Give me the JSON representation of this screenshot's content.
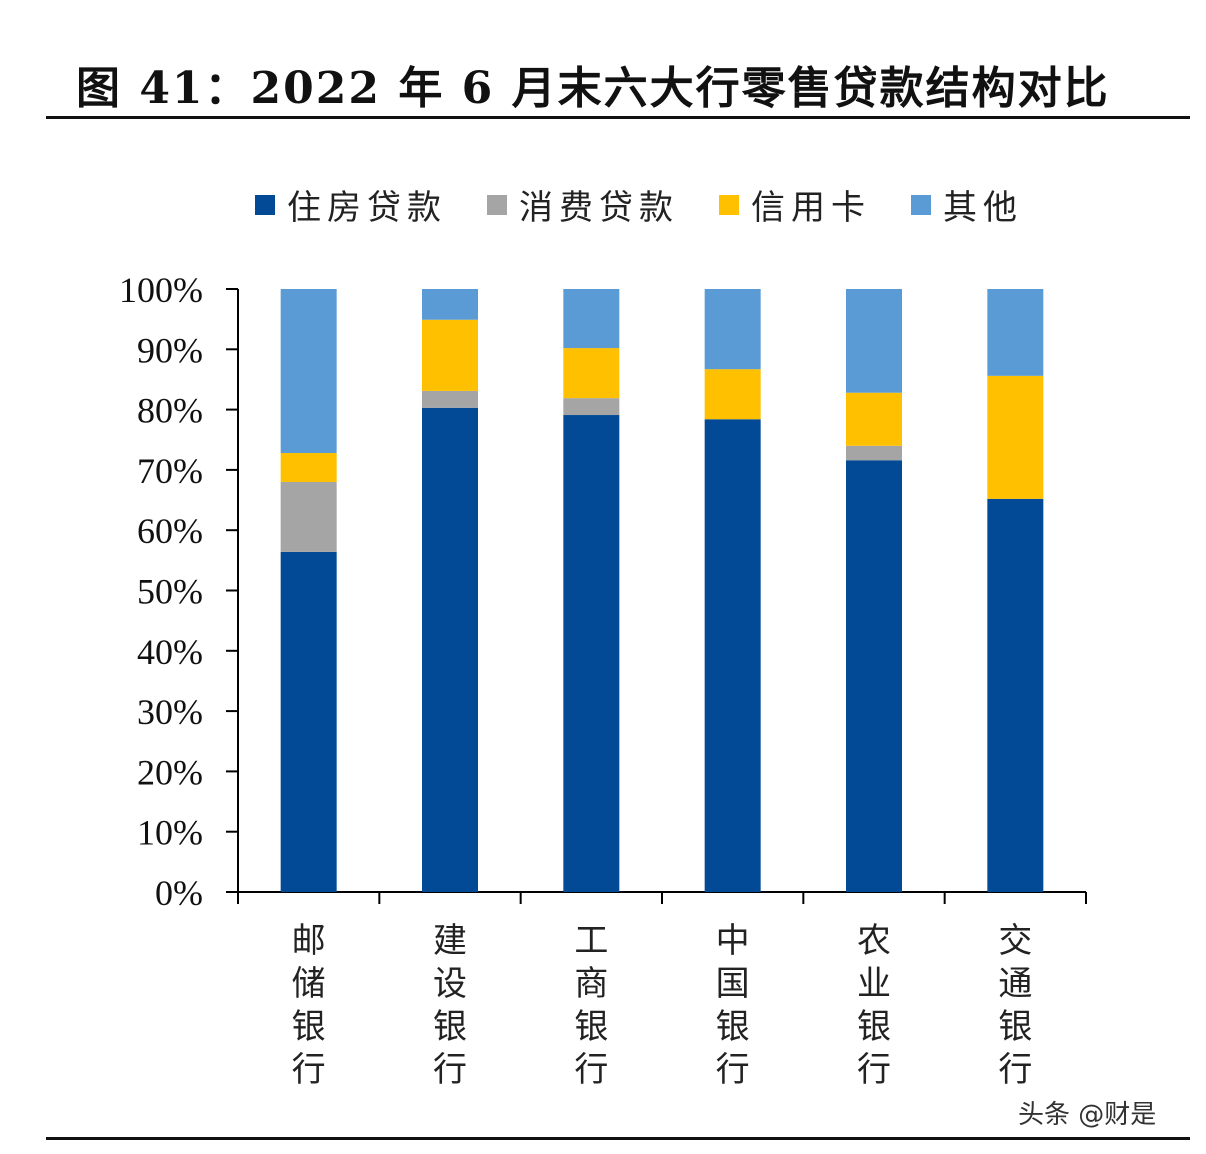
{
  "title": "图 41：2022 年 6 月末六大行零售贷款结构对比",
  "watermark": "头条 @财是",
  "chart_data": {
    "type": "bar",
    "stacked": true,
    "title": "图 41：2022 年 6 月末六大行零售贷款结构对比",
    "xlabel": "",
    "ylabel": "",
    "ylim": [
      0,
      100
    ],
    "y_ticks": [
      "0%",
      "10%",
      "20%",
      "30%",
      "40%",
      "50%",
      "60%",
      "70%",
      "80%",
      "90%",
      "100%"
    ],
    "categories": [
      "邮储银行",
      "建设银行",
      "工商银行",
      "中国银行",
      "农业银行",
      "交通银行"
    ],
    "legend_position": "top",
    "grid": false,
    "series": [
      {
        "name": "住房贷款",
        "color": "#034a96",
        "values": [
          56.4,
          80.3,
          79.1,
          78.4,
          71.6,
          65.2
        ]
      },
      {
        "name": "消费贷款",
        "color": "#a5a5a5",
        "values": [
          11.6,
          2.8,
          2.8,
          0.0,
          2.4,
          0.0
        ]
      },
      {
        "name": "信用卡",
        "color": "#ffc000",
        "values": [
          4.8,
          11.8,
          8.3,
          8.3,
          8.8,
          20.4
        ]
      },
      {
        "name": "其他",
        "color": "#5b9bd5",
        "values": [
          27.2,
          5.1,
          9.8,
          13.3,
          17.2,
          14.4
        ]
      }
    ]
  }
}
